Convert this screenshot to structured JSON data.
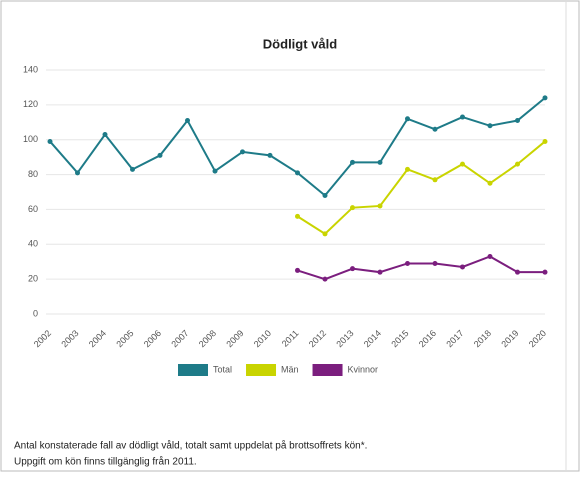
{
  "chart_data": {
    "type": "line",
    "title": "Dödligt våld",
    "categories": [
      "2002",
      "2003",
      "2004",
      "2005",
      "2006",
      "2007",
      "2008",
      "2009",
      "2010",
      "2011",
      "2012",
      "2013",
      "2014",
      "2015",
      "2016",
      "2017",
      "2018",
      "2019",
      "2020"
    ],
    "series": [
      {
        "name": "Total",
        "color": "#1e7b88",
        "values": [
          99,
          81,
          103,
          83,
          91,
          111,
          82,
          93,
          91,
          81,
          68,
          87,
          87,
          112,
          106,
          113,
          108,
          111,
          124
        ]
      },
      {
        "name": "Män",
        "color": "#c9d400",
        "values": [
          null,
          null,
          null,
          null,
          null,
          null,
          null,
          null,
          null,
          56,
          46,
          61,
          62,
          83,
          77,
          86,
          75,
          86,
          99
        ]
      },
      {
        "name": "Kvinnor",
        "color": "#7b1e7e",
        "values": [
          null,
          null,
          null,
          null,
          null,
          null,
          null,
          null,
          null,
          25,
          20,
          26,
          24,
          29,
          29,
          27,
          33,
          24,
          24
        ]
      }
    ],
    "ylim": [
      0,
      140
    ],
    "yticks": [
      0,
      20,
      40,
      60,
      80,
      100,
      120,
      140
    ],
    "grid": true,
    "caption": [
      "Antal konstaterade fall av dödligt våld, totalt samt uppdelat på brottsoffrets kön*.",
      "Uppgift om kön finns tillgänglig från 2011."
    ]
  }
}
